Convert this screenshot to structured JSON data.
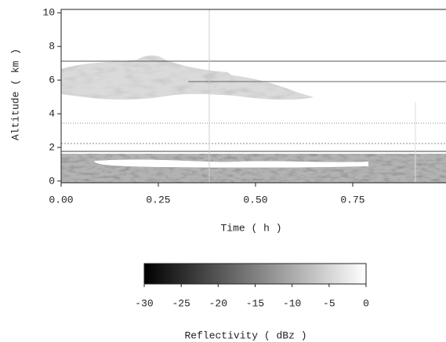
{
  "chart_data": {
    "type": "heatmap",
    "x_label": "Time ( h )",
    "y_label": "Altitude ( km )",
    "xlim": [
      0,
      0.99
    ],
    "xticks": [
      {
        "value": 0,
        "label": "0.00"
      },
      {
        "value": 0.25,
        "label": "0.25"
      },
      {
        "value": 0.5,
        "label": "0.50"
      },
      {
        "value": 0.75,
        "label": "0.75"
      }
    ],
    "ylim": [
      -0.1,
      10.2
    ],
    "yticks": [
      0,
      2,
      4,
      6,
      8,
      10
    ],
    "colorbar": {
      "label": "Reflectivity ( dBz )",
      "lim": [
        -30,
        0
      ],
      "ticks": [
        -30,
        -25,
        -20,
        -15,
        -10,
        -5,
        0
      ],
      "colors": [
        "#000000",
        "#ffffff"
      ]
    }
  }
}
